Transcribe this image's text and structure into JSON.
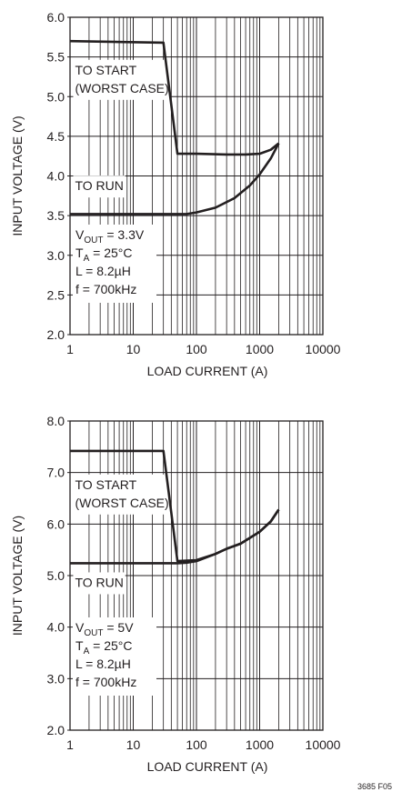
{
  "figure_id": "3685 F05",
  "chart_data": [
    {
      "type": "line",
      "xscale": "log",
      "xlim": [
        1,
        10000
      ],
      "ylim": [
        2.0,
        6.0
      ],
      "xlabel": "LOAD CURRENT (A)",
      "ylabel": "INPUT VOLTAGE (V)",
      "xticks": [
        "1",
        "10",
        "100",
        "1000",
        "10000"
      ],
      "yticks": [
        {
          "value": 2.0,
          "label": "2.0"
        },
        {
          "value": 2.5,
          "label": "2.5"
        },
        {
          "value": 3.0,
          "label": "3.0"
        },
        {
          "value": 3.5,
          "label": "3.5"
        },
        {
          "value": 4.0,
          "label": "4.0"
        },
        {
          "value": 4.5,
          "label": "4.5"
        },
        {
          "value": 5.0,
          "label": "5.0"
        },
        {
          "value": 5.5,
          "label": "5.5"
        },
        {
          "value": 6.0,
          "label": "6.0"
        }
      ],
      "grid": true,
      "series": [
        {
          "name": "TO START (WORST CASE)",
          "x": [
            1,
            30,
            50,
            100,
            300,
            600,
            1000,
            1500,
            2000
          ],
          "y": [
            5.7,
            5.68,
            4.28,
            4.28,
            4.27,
            4.27,
            4.28,
            4.33,
            4.41
          ]
        },
        {
          "name": "TO RUN",
          "x": [
            1,
            70,
            100,
            200,
            400,
            700,
            1000,
            1500,
            2000
          ],
          "y": [
            3.52,
            3.52,
            3.54,
            3.6,
            3.72,
            3.88,
            4.02,
            4.22,
            4.41
          ]
        }
      ],
      "series_labels": [
        {
          "lines": [
            "TO START",
            "(WORST CASE)"
          ],
          "x": 1.05,
          "y": 5.28
        },
        {
          "lines": [
            "TO RUN"
          ],
          "x": 1.05,
          "y": 3.82
        }
      ],
      "conditions": {
        "vout": {
          "pre": "V",
          "sub": "OUT",
          "post": " = 3.3V"
        },
        "ta": {
          "pre": "T",
          "sub": "A",
          "post": " = 25°C"
        },
        "inductance": "L = 8.2µH",
        "frequency": "f = 700kHz"
      }
    },
    {
      "type": "line",
      "xscale": "log",
      "xlim": [
        1,
        10000
      ],
      "ylim": [
        2.0,
        8.0
      ],
      "xlabel": "LOAD CURRENT (A)",
      "ylabel": "INPUT VOLTAGE (V)",
      "xticks": [
        "1",
        "10",
        "100",
        "1000",
        "10000"
      ],
      "yticks": [
        {
          "value": 2.0,
          "label": "2.0"
        },
        {
          "value": 3.0,
          "label": "3.0"
        },
        {
          "value": 4.0,
          "label": "4.0"
        },
        {
          "value": 5.0,
          "label": "5.0"
        },
        {
          "value": 6.0,
          "label": "6.0"
        },
        {
          "value": 7.0,
          "label": "7.0"
        },
        {
          "value": 8.0,
          "label": "8.0"
        }
      ],
      "grid": true,
      "series": [
        {
          "name": "TO START (WORST CASE)",
          "x": [
            1,
            30,
            50,
            100,
            200,
            300,
            500,
            1000,
            1500,
            2000
          ],
          "y": [
            7.42,
            7.42,
            5.28,
            5.3,
            5.42,
            5.52,
            5.62,
            5.85,
            6.05,
            6.28
          ]
        },
        {
          "name": "TO RUN",
          "x": [
            1,
            50,
            70,
            100,
            200,
            300,
            500,
            1000,
            1500,
            2000
          ],
          "y": [
            5.24,
            5.24,
            5.25,
            5.28,
            5.42,
            5.52,
            5.62,
            5.85,
            6.05,
            6.28
          ]
        }
      ],
      "series_labels": [
        {
          "lines": [
            "TO START",
            "(WORST CASE)"
          ],
          "x": 1.05,
          "y": 6.68
        },
        {
          "lines": [
            "TO RUN"
          ],
          "x": 1.05,
          "y": 4.78
        }
      ],
      "conditions": {
        "vout": {
          "pre": "V",
          "sub": "OUT",
          "post": " = 5V"
        },
        "ta": {
          "pre": "T",
          "sub": "A",
          "post": " = 25°C"
        },
        "inductance": "L = 8.2µH",
        "frequency": "f = 700kHz"
      }
    }
  ]
}
